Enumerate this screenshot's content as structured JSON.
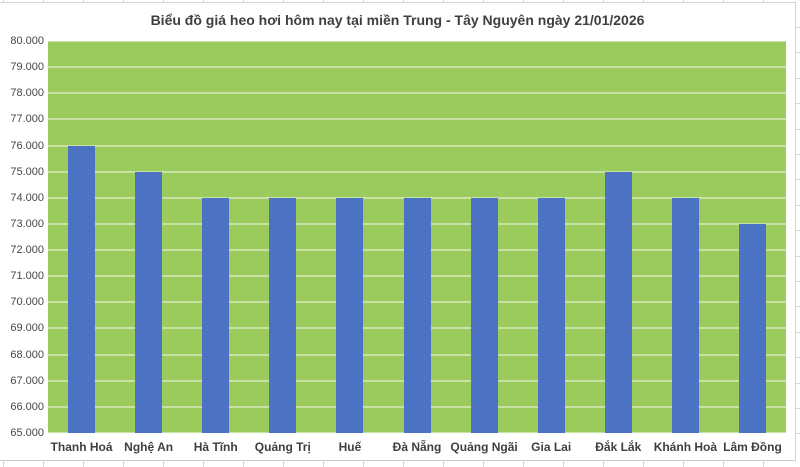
{
  "chart_data": {
    "type": "bar",
    "title": "Biểu đồ giá heo hơi hôm nay tại miền Trung - Tây Nguyên ngày 21/01/2026",
    "categories": [
      "Thanh Hoá",
      "Nghệ An",
      "Hà Tĩnh",
      "Quảng Trị",
      "Huế",
      "Đà Nẵng",
      "Quảng Ngãi",
      "Gia Lai",
      "Đắk Lắk",
      "Khánh Hoà",
      "Lâm Đồng"
    ],
    "values": [
      76000,
      75000,
      74000,
      74000,
      74000,
      74000,
      74000,
      74000,
      75000,
      74000,
      73000
    ],
    "xlabel": "",
    "ylabel": "",
    "ylim": [
      65000,
      80000
    ],
    "y_tick_step": 1000,
    "y_tick_labels": [
      "80.000",
      "79.000",
      "78.000",
      "77.000",
      "76.000",
      "75.000",
      "74.000",
      "73.000",
      "72.000",
      "71.000",
      "70.000",
      "69.000",
      "68.000",
      "67.000",
      "66.000",
      "65.000"
    ],
    "grid": true,
    "legend": "none",
    "colors": {
      "bar": "#4C72C4",
      "plot_background": "#9BCB5C",
      "gridline": "#C8E2A6",
      "title_text": "#3F3F3F",
      "axis_text": "#474747"
    }
  }
}
